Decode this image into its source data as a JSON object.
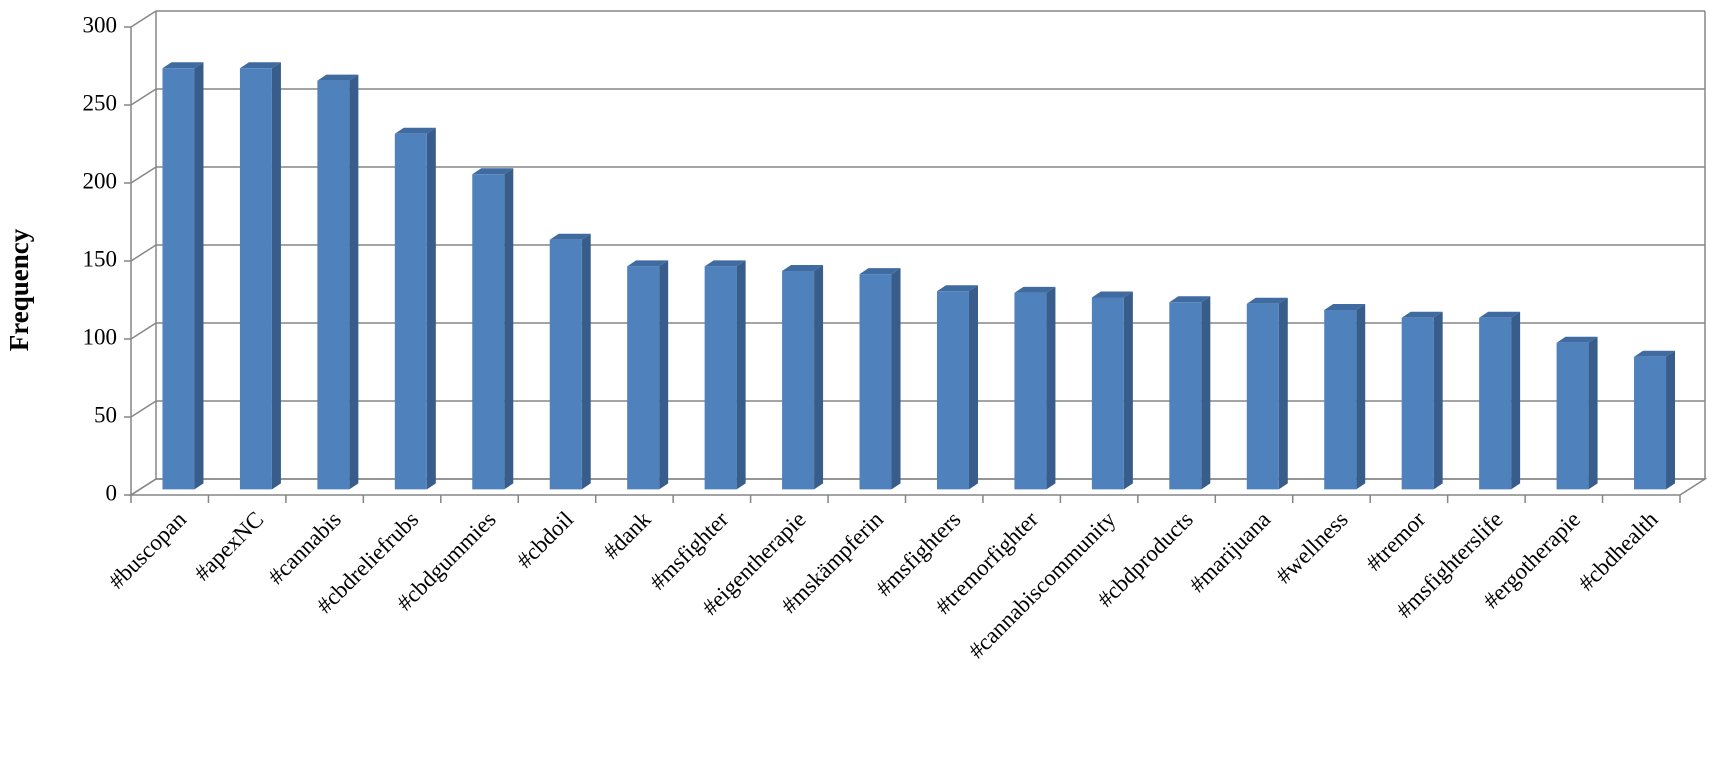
{
  "chart_data": {
    "type": "bar3d",
    "y_label": "Frequency",
    "categories": [
      "#buscopan",
      "#apexNC",
      "#cannabis",
      "#cbdreliefrubs",
      "#cbdgummies",
      "#cbdoil",
      "#dank",
      "#msfighter",
      "#eigentherapie",
      "#mskämpferin",
      "#msfighters",
      "#tremorfighter",
      "#cannabiscommunity",
      "#cbdproducts",
      "#marijuana",
      "#wellness",
      "#tremor",
      "#msfighterslife",
      "#ergotherapie",
      "#cbdhealth"
    ],
    "values": [
      270,
      270,
      262,
      228,
      202,
      160,
      143,
      143,
      140,
      138,
      127,
      126,
      123,
      120,
      119,
      115,
      110,
      110,
      94,
      85
    ],
    "color": "#4f81bd",
    "ylim": [
      0,
      300
    ],
    "yticks": [
      0,
      50,
      100,
      150,
      200,
      250,
      300
    ],
    "grid": true
  }
}
